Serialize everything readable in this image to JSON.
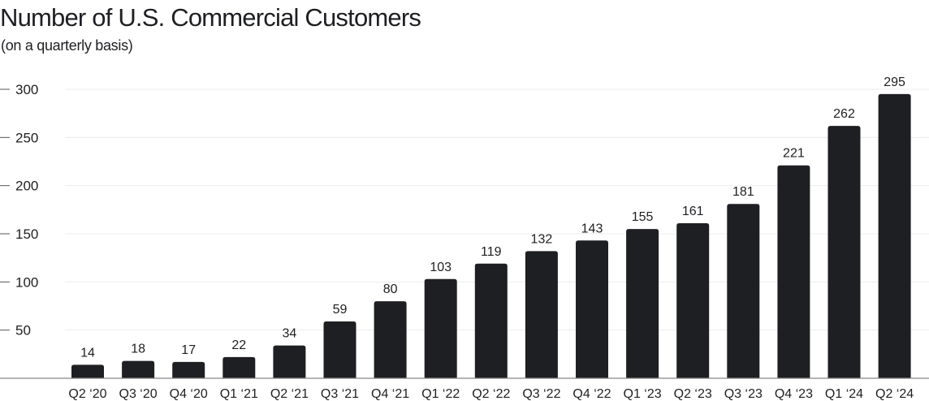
{
  "chart_data": {
    "type": "bar",
    "title": "Number of U.S. Commercial Customers",
    "subtitle": "(on a quarterly basis)",
    "xlabel": "",
    "ylabel": "",
    "categories": [
      "Q2 ‘20",
      "Q3 ‘20",
      "Q4 ‘20",
      "Q1 ‘21",
      "Q2 ‘21",
      "Q3 ‘21",
      "Q4 ‘21",
      "Q1 ‘22",
      "Q2 ‘22",
      "Q3 ‘22",
      "Q4 ‘22",
      "Q1 ‘23",
      "Q2 ‘23",
      "Q3 ‘23",
      "Q4 ‘23",
      "Q1 ‘24",
      "Q2 ‘24"
    ],
    "values": [
      14,
      18,
      17,
      22,
      34,
      59,
      80,
      103,
      119,
      132,
      143,
      155,
      161,
      181,
      221,
      262,
      295
    ],
    "ylim": [
      0,
      300
    ],
    "yticks": [
      50,
      100,
      150,
      200,
      250,
      300
    ],
    "grid": true,
    "data_labels": true,
    "bar_color": "#1e1f22",
    "grid_color": "#ececec"
  }
}
